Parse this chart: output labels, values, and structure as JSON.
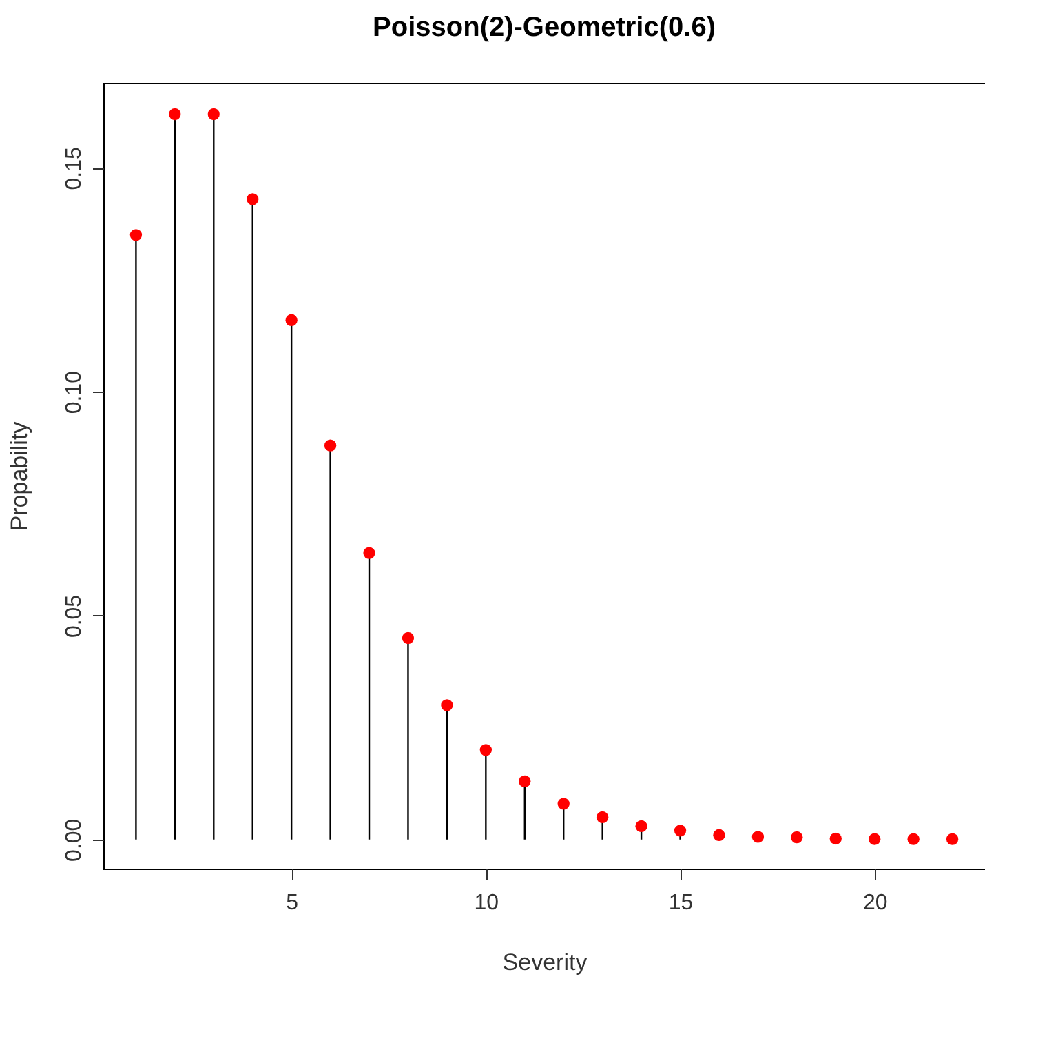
{
  "chart_data": {
    "type": "lollipop",
    "title": "Poisson(2)-Geometric(0.6)",
    "xlabel": "Severity",
    "ylabel": "Propability",
    "x": [
      1,
      2,
      3,
      4,
      5,
      6,
      7,
      8,
      9,
      10,
      11,
      12,
      13,
      14,
      15,
      16,
      17,
      18,
      19,
      20,
      21,
      22
    ],
    "series": [
      {
        "color": "#ff0000",
        "values": [
          0.135,
          0.162,
          0.162,
          0.143,
          0.116,
          0.088,
          0.064,
          0.045,
          0.03,
          0.02,
          0.013,
          0.008,
          0.005,
          0.003,
          0.002,
          0.001,
          0.0006,
          0.0005,
          0.0002,
          0.0001,
          0.0001,
          0.0001
        ]
      }
    ],
    "xlim": [
      0.16,
      22.84
    ],
    "xticks": [
      5,
      10,
      15,
      20
    ],
    "ylim": [
      -0.0065,
      0.169
    ],
    "yticks": [
      {
        "value": 0,
        "label": "0.00"
      },
      {
        "value": 0.05,
        "label": "0.05"
      },
      {
        "value": 0.1,
        "label": "0.10"
      },
      {
        "value": 0.15,
        "label": "0.15"
      }
    ],
    "marker": "circle",
    "grid": false,
    "legend": false
  }
}
